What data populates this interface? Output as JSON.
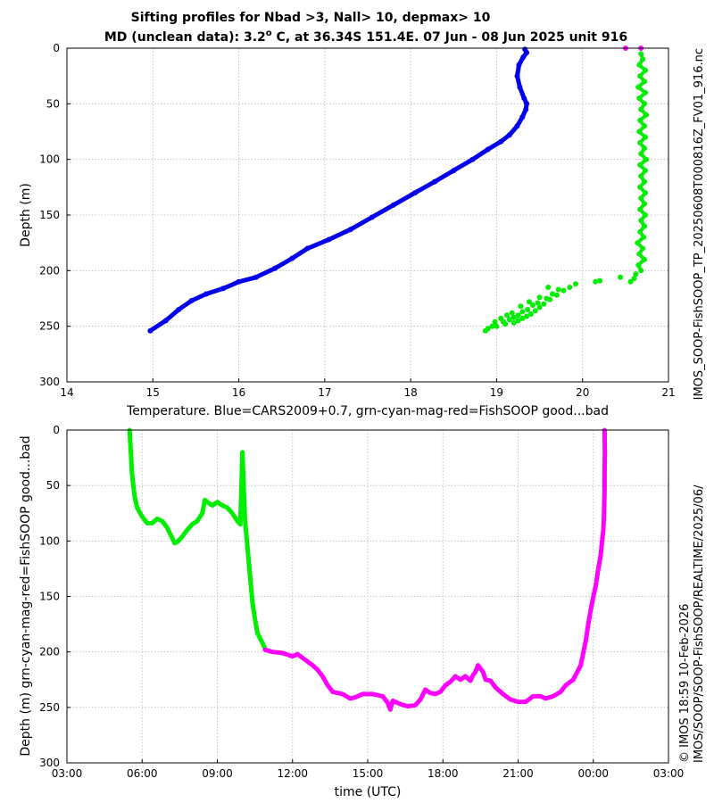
{
  "title": {
    "line1": "Sifting profiles for Nbad >3, Nall> 10, depmax> 10",
    "line2_prefix": "MD (unclean data): 3.2",
    "line2_sup": "o",
    "line2_suffix": " C, at 36.34S 151.4E. 07 Jun - 08 Jun 2025 unit 916"
  },
  "side_text": {
    "right_top": "IMOS_SOOP-FishSOOP_TP_20250608T000816Z_FV01_916.nc",
    "right_bottom": "IMOS/SOOP/SOOP-FishSOOP/REALTIME/2025/06/",
    "credit": "© IMOS 18:59 10-Feb-2026"
  },
  "colors": {
    "cars": "#0000ee",
    "good": "#00ee00",
    "bad": "#ff00ff",
    "axis": "#000000",
    "grid": "#b8b8b8"
  },
  "chart_data": [
    {
      "type": "scatter",
      "xlabel": "Temperature. Blue=CARS2009+0.7, grn-cyan-mag-red=FishSOOP good...bad",
      "ylabel": "Depth (m)",
      "xlim": [
        14,
        21
      ],
      "ylim": [
        300,
        0
      ],
      "y_inverted": true,
      "xticks": [
        14,
        15,
        16,
        17,
        18,
        19,
        20,
        21
      ],
      "yticks": [
        0,
        50,
        100,
        150,
        200,
        250,
        300
      ],
      "grid": true,
      "series": [
        {
          "color": "#0000ee",
          "points": [
            [
              19.33,
              1
            ],
            [
              19.35,
              4
            ],
            [
              19.31,
              8
            ],
            [
              19.26,
              15
            ],
            [
              19.24,
              25
            ],
            [
              19.27,
              35
            ],
            [
              19.32,
              45
            ],
            [
              19.35,
              50
            ],
            [
              19.34,
              55
            ],
            [
              19.3,
              62
            ],
            [
              19.24,
              70
            ],
            [
              19.15,
              78
            ],
            [
              19.05,
              84
            ],
            [
              18.9,
              91
            ],
            [
              18.72,
              100
            ],
            [
              18.5,
              110
            ],
            [
              18.28,
              120
            ],
            [
              18.05,
              130
            ],
            [
              17.8,
              141
            ],
            [
              17.55,
              152
            ],
            [
              17.3,
              163
            ],
            [
              17.05,
              172
            ],
            [
              16.8,
              180
            ],
            [
              16.62,
              189
            ],
            [
              16.42,
              198
            ],
            [
              16.2,
              206
            ],
            [
              16.0,
              210
            ],
            [
              15.82,
              216
            ],
            [
              15.62,
              221
            ],
            [
              15.45,
              227
            ],
            [
              15.3,
              235
            ],
            [
              15.15,
              245
            ],
            [
              14.97,
              254
            ]
          ]
        },
        {
          "color": "#00ee00",
          "points": [
            [
              20.68,
              5
            ],
            [
              20.7,
              10
            ],
            [
              20.66,
              15
            ],
            [
              20.73,
              20
            ],
            [
              20.67,
              25
            ],
            [
              20.72,
              30
            ],
            [
              20.65,
              35
            ],
            [
              20.73,
              40
            ],
            [
              20.66,
              45
            ],
            [
              20.72,
              50
            ],
            [
              20.68,
              55
            ],
            [
              20.74,
              60
            ],
            [
              20.67,
              65
            ],
            [
              20.72,
              70
            ],
            [
              20.66,
              75
            ],
            [
              20.73,
              80
            ],
            [
              20.67,
              85
            ],
            [
              20.72,
              90
            ],
            [
              20.68,
              95
            ],
            [
              20.74,
              100
            ],
            [
              20.67,
              105
            ],
            [
              20.73,
              110
            ],
            [
              20.68,
              115
            ],
            [
              20.72,
              120
            ],
            [
              20.67,
              125
            ],
            [
              20.73,
              130
            ],
            [
              20.68,
              135
            ],
            [
              20.72,
              140
            ],
            [
              20.67,
              145
            ],
            [
              20.73,
              150
            ],
            [
              20.68,
              155
            ],
            [
              20.72,
              160
            ],
            [
              20.67,
              165
            ],
            [
              20.71,
              170
            ],
            [
              20.64,
              175
            ],
            [
              20.7,
              180
            ],
            [
              20.66,
              185
            ],
            [
              20.72,
              190
            ],
            [
              20.65,
              195
            ],
            [
              20.68,
              200
            ],
            [
              20.62,
              203
            ],
            [
              20.6,
              207
            ],
            [
              20.56,
              210
            ],
            [
              20.44,
              206
            ],
            [
              20.2,
              209
            ],
            [
              20.15,
              210
            ],
            [
              19.92,
              212
            ],
            [
              19.85,
              215
            ],
            [
              19.78,
              218
            ],
            [
              19.7,
              222
            ],
            [
              19.62,
              226
            ],
            [
              19.55,
              230
            ],
            [
              19.5,
              233
            ],
            [
              19.45,
              236
            ],
            [
              19.4,
              239
            ],
            [
              19.35,
              241
            ],
            [
              19.3,
              243
            ],
            [
              19.25,
              245
            ],
            [
              19.2,
              247
            ],
            [
              19.1,
              248
            ],
            [
              19.0,
              250
            ],
            [
              18.95,
              250
            ],
            [
              18.9,
              252
            ],
            [
              18.87,
              254
            ],
            [
              19.6,
              215
            ],
            [
              19.72,
              217
            ],
            [
              19.65,
              221
            ],
            [
              19.58,
              225
            ],
            [
              19.48,
              229
            ],
            [
              19.42,
              231
            ],
            [
              19.36,
              235
            ],
            [
              19.3,
              237
            ],
            [
              19.25,
              240
            ],
            [
              19.2,
              242
            ],
            [
              19.15,
              244
            ],
            [
              19.08,
              246
            ],
            [
              19.5,
              224
            ],
            [
              19.38,
              228
            ],
            [
              19.28,
              232
            ],
            [
              19.18,
              238
            ],
            [
              19.12,
              240
            ],
            [
              19.05,
              243
            ],
            [
              18.98,
              246
            ]
          ]
        },
        {
          "color": "#ff00ff",
          "points": [
            [
              20.5,
              0
            ],
            [
              20.68,
              0
            ]
          ]
        }
      ]
    },
    {
      "type": "line",
      "xlabel": "time (UTC)",
      "ylabel": "Depth (m) grn-cyan-mag-red=FishSOOP good...bad",
      "xlim": [
        3,
        27
      ],
      "ylim": [
        300,
        0
      ],
      "y_inverted": true,
      "xticks": [
        3,
        6,
        9,
        12,
        15,
        18,
        21,
        24,
        27
      ],
      "xticklabels": [
        "03:00",
        "06:00",
        "09:00",
        "12:00",
        "15:00",
        "18:00",
        "21:00",
        "00:00",
        "03:00"
      ],
      "yticks": [
        0,
        50,
        100,
        150,
        200,
        250,
        300
      ],
      "grid": true,
      "series": [
        {
          "color": "#00ee00",
          "points": [
            [
              5.5,
              0
            ],
            [
              5.55,
              20
            ],
            [
              5.6,
              40
            ],
            [
              5.7,
              60
            ],
            [
              5.8,
              70
            ],
            [
              6.0,
              78
            ],
            [
              6.2,
              84
            ],
            [
              6.4,
              84
            ],
            [
              6.6,
              80
            ],
            [
              6.8,
              82
            ],
            [
              7.0,
              88
            ],
            [
              7.15,
              95
            ],
            [
              7.3,
              102
            ],
            [
              7.45,
              100
            ],
            [
              7.6,
              96
            ],
            [
              7.8,
              90
            ],
            [
              8.0,
              85
            ],
            [
              8.2,
              82
            ],
            [
              8.4,
              75
            ],
            [
              8.5,
              63
            ],
            [
              8.6,
              65
            ],
            [
              8.8,
              68
            ],
            [
              9.0,
              65
            ],
            [
              9.2,
              68
            ],
            [
              9.4,
              70
            ],
            [
              9.6,
              75
            ],
            [
              9.8,
              82
            ],
            [
              9.92,
              85
            ],
            [
              9.95,
              60
            ],
            [
              10.0,
              20
            ],
            [
              10.05,
              50
            ],
            [
              10.1,
              80
            ],
            [
              10.2,
              105
            ],
            [
              10.3,
              130
            ],
            [
              10.4,
              155
            ],
            [
              10.5,
              170
            ],
            [
              10.6,
              183
            ],
            [
              10.8,
              192
            ],
            [
              10.9,
              197
            ]
          ]
        },
        {
          "color": "#ff00ff",
          "points": [
            [
              10.9,
              198
            ],
            [
              11.2,
              200
            ],
            [
              11.6,
              201
            ],
            [
              12.0,
              204
            ],
            [
              12.2,
              202
            ],
            [
              12.5,
              207
            ],
            [
              12.8,
              212
            ],
            [
              13.0,
              216
            ],
            [
              13.2,
              222
            ],
            [
              13.4,
              230
            ],
            [
              13.6,
              236
            ],
            [
              14.0,
              238
            ],
            [
              14.3,
              242
            ],
            [
              14.5,
              241
            ],
            [
              14.8,
              238
            ],
            [
              15.2,
              238
            ],
            [
              15.6,
              240
            ],
            [
              15.8,
              246
            ],
            [
              15.9,
              252
            ],
            [
              16.0,
              244
            ],
            [
              16.3,
              247
            ],
            [
              16.6,
              249
            ],
            [
              16.9,
              248
            ],
            [
              17.1,
              243
            ],
            [
              17.3,
              234
            ],
            [
              17.5,
              237
            ],
            [
              17.7,
              238
            ],
            [
              17.9,
              236
            ],
            [
              18.1,
              230
            ],
            [
              18.3,
              227
            ],
            [
              18.5,
              222
            ],
            [
              18.7,
              225
            ],
            [
              18.9,
              222
            ],
            [
              19.1,
              226
            ],
            [
              19.2,
              221
            ],
            [
              19.3,
              218
            ],
            [
              19.4,
              212
            ],
            [
              19.6,
              218
            ],
            [
              19.7,
              225
            ],
            [
              19.9,
              226
            ],
            [
              20.1,
              232
            ],
            [
              20.4,
              238
            ],
            [
              20.7,
              243
            ],
            [
              21.0,
              245
            ],
            [
              21.3,
              245
            ],
            [
              21.6,
              240
            ],
            [
              21.9,
              240
            ],
            [
              22.1,
              242
            ],
            [
              22.4,
              240
            ],
            [
              22.7,
              236
            ],
            [
              22.9,
              230
            ],
            [
              23.2,
              225
            ],
            [
              23.5,
              212
            ],
            [
              23.7,
              190
            ],
            [
              23.8,
              175
            ],
            [
              23.9,
              162
            ],
            [
              24.0,
              150
            ],
            [
              24.1,
              140
            ],
            [
              24.2,
              125
            ],
            [
              24.3,
              112
            ],
            [
              24.35,
              100
            ],
            [
              24.4,
              90
            ],
            [
              24.43,
              75
            ],
            [
              24.45,
              55
            ],
            [
              24.45,
              40
            ],
            [
              24.46,
              20
            ],
            [
              24.45,
              0
            ]
          ]
        }
      ]
    }
  ]
}
